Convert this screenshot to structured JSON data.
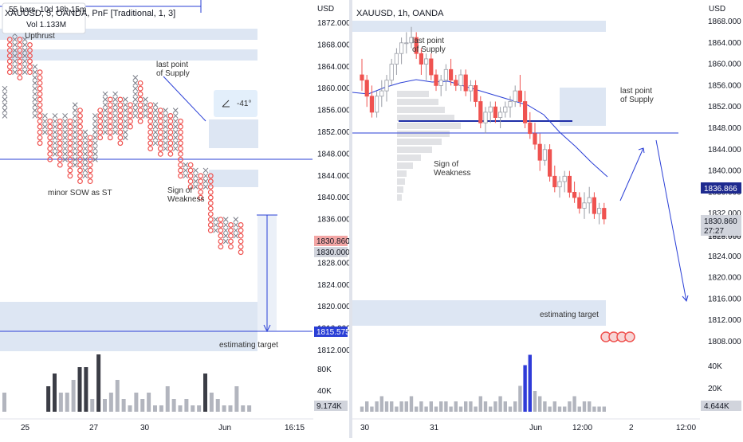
{
  "left": {
    "header_bars": "55 bars, 10d 18h 15m",
    "symbol": "XAUUSD, 5, OANDA, PnF [Traditional, 1, 3]",
    "vol": "Vol 1.133M",
    "currency": "USD",
    "annotations": {
      "upthrust": "Upthrust",
      "last_point_l1": "last point",
      "last_point_l2": "of Supply",
      "minor_sow": "minor SOW as ST",
      "sign_l1": "Sign of",
      "sign_l2": "Weakness",
      "estimating_target": "estimating target",
      "angle": "-41°"
    },
    "price_tags": {
      "a": "1830.860",
      "b": "1830.000",
      "c": "1815.575",
      "vol": "9.174K"
    },
    "x_labels": [
      "25",
      "27",
      "30",
      "Jun",
      "16:15"
    ]
  },
  "right": {
    "symbol": "XAUUSD, 1h, OANDA",
    "currency": "USD",
    "annotations": {
      "last_point_l1": "last point",
      "last_point_l2": "of Supply",
      "last_point2_l1": "last point",
      "last_point2_l2": "of Supply",
      "sign_l1": "Sign of",
      "sign_l2": "Weakness",
      "estimating_target": "estimating target"
    },
    "price_tags": {
      "ma": "1836.866",
      "last": "1830.860",
      "countdown": "27:27",
      "behind": "1828.000",
      "vol": "4.644K"
    },
    "x_labels": [
      "30",
      "31",
      "Jun",
      "12:00",
      "2",
      "12:00"
    ]
  },
  "colors": {
    "up": "#ef5350",
    "down": "#787b86",
    "blue": "#2a3fd6",
    "zone": "#dde6f3",
    "vol_blue": "#2f3bd8"
  },
  "chart_data": [
    {
      "type": "point-and-figure",
      "title": "XAUUSD, 5, OANDA, PnF [Traditional, 1, 3]",
      "yaxis_label": "USD",
      "y_ticks": [
        1872,
        1868,
        1864,
        1860,
        1856,
        1852,
        1848,
        1844,
        1840,
        1836,
        1832,
        1828,
        1824,
        1820,
        1816,
        1812
      ],
      "ylim": [
        1810,
        1874
      ],
      "x_ticks": [
        "25",
        "27",
        "30",
        "Jun",
        "16:15"
      ],
      "columns": [
        {
          "t": "X",
          "lo": 1855,
          "hi": 1860
        },
        {
          "t": "O",
          "lo": 1863,
          "hi": 1869
        },
        {
          "t": "X",
          "lo": 1863,
          "hi": 1870
        },
        {
          "t": "O",
          "lo": 1862,
          "hi": 1869
        },
        {
          "t": "X",
          "lo": 1863,
          "hi": 1869
        },
        {
          "t": "O",
          "lo": 1863,
          "hi": 1868
        },
        {
          "t": "X",
          "lo": 1855,
          "hi": 1864
        },
        {
          "t": "O",
          "lo": 1850,
          "hi": 1863
        },
        {
          "t": "X",
          "lo": 1852,
          "hi": 1855
        },
        {
          "t": "O",
          "lo": 1847,
          "hi": 1854
        },
        {
          "t": "X",
          "lo": 1848,
          "hi": 1855
        },
        {
          "t": "O",
          "lo": 1846,
          "hi": 1854
        },
        {
          "t": "X",
          "lo": 1847,
          "hi": 1855
        },
        {
          "t": "O",
          "lo": 1844,
          "hi": 1854
        },
        {
          "t": "X",
          "lo": 1846,
          "hi": 1857
        },
        {
          "t": "O",
          "lo": 1843,
          "hi": 1856
        },
        {
          "t": "X",
          "lo": 1844,
          "hi": 1852
        },
        {
          "t": "O",
          "lo": 1843,
          "hi": 1851
        },
        {
          "t": "X",
          "lo": 1847,
          "hi": 1855
        },
        {
          "t": "O",
          "lo": 1851,
          "hi": 1856
        },
        {
          "t": "X",
          "lo": 1852,
          "hi": 1859
        },
        {
          "t": "O",
          "lo": 1851,
          "hi": 1858
        },
        {
          "t": "X",
          "lo": 1852,
          "hi": 1859
        },
        {
          "t": "O",
          "lo": 1850,
          "hi": 1858
        },
        {
          "t": "X",
          "lo": 1851,
          "hi": 1858
        },
        {
          "t": "O",
          "lo": 1853,
          "hi": 1857
        },
        {
          "t": "X",
          "lo": 1855,
          "hi": 1862
        },
        {
          "t": "O",
          "lo": 1854,
          "hi": 1861
        },
        {
          "t": "X",
          "lo": 1855,
          "hi": 1858
        },
        {
          "t": "O",
          "lo": 1849,
          "hi": 1857
        },
        {
          "t": "X",
          "lo": 1850,
          "hi": 1857
        },
        {
          "t": "O",
          "lo": 1848,
          "hi": 1856
        },
        {
          "t": "X",
          "lo": 1849,
          "hi": 1856
        },
        {
          "t": "O",
          "lo": 1848,
          "hi": 1855
        },
        {
          "t": "X",
          "lo": 1849,
          "hi": 1856
        },
        {
          "t": "O",
          "lo": 1844,
          "hi": 1854
        },
        {
          "t": "X",
          "lo": 1844,
          "hi": 1846
        },
        {
          "t": "O",
          "lo": 1842,
          "hi": 1846
        },
        {
          "t": "X",
          "lo": 1842,
          "hi": 1845
        },
        {
          "t": "O",
          "lo": 1840,
          "hi": 1844
        },
        {
          "t": "X",
          "lo": 1842,
          "hi": 1845
        },
        {
          "t": "O",
          "lo": 1834,
          "hi": 1844
        },
        {
          "t": "X",
          "lo": 1834,
          "hi": 1836
        },
        {
          "t": "O",
          "lo": 1831,
          "hi": 1836
        },
        {
          "t": "X",
          "lo": 1832,
          "hi": 1836
        },
        {
          "t": "O",
          "lo": 1831,
          "hi": 1835
        },
        {
          "t": "X",
          "lo": 1833,
          "hi": 1836
        },
        {
          "t": "O",
          "lo": 1830,
          "hi": 1835
        }
      ],
      "volume": [
        3,
        0,
        0,
        0,
        0,
        0,
        0,
        4,
        6,
        3,
        3,
        5,
        7,
        7,
        2,
        9,
        2,
        3,
        5,
        2,
        1,
        3,
        2,
        3,
        1,
        1,
        4,
        2,
        1,
        2,
        1,
        1,
        6,
        3,
        2,
        1,
        1,
        4,
        1,
        1
      ],
      "volume_ticks": [
        "80K",
        "40K"
      ],
      "last_price": 1830.86,
      "target": 1815.575
    },
    {
      "type": "candlestick",
      "title": "XAUUSD, 1h, OANDA",
      "yaxis_label": "USD",
      "y_ticks": [
        1868,
        1864,
        1860,
        1856,
        1852,
        1848,
        1844,
        1840,
        1836,
        1832,
        1828,
        1824,
        1820,
        1816,
        1812,
        1808
      ],
      "ylim": [
        1806,
        1870
      ],
      "x_ticks": [
        "30",
        "31",
        "Jun",
        "12:00",
        "2",
        "12:00"
      ],
      "candles": [
        [
          1858,
          1861,
          1855,
          1857
        ],
        [
          1857,
          1858,
          1852,
          1854
        ],
        [
          1854,
          1856,
          1850,
          1851
        ],
        [
          1851,
          1855,
          1850,
          1854
        ],
        [
          1854,
          1857,
          1852,
          1855
        ],
        [
          1855,
          1858,
          1853,
          1857
        ],
        [
          1857,
          1861,
          1856,
          1860
        ],
        [
          1860,
          1863,
          1858,
          1862
        ],
        [
          1862,
          1865,
          1860,
          1864
        ],
        [
          1864,
          1866,
          1862,
          1864
        ],
        [
          1864,
          1867,
          1863,
          1865
        ],
        [
          1865,
          1866,
          1861,
          1862
        ],
        [
          1862,
          1863,
          1858,
          1860
        ],
        [
          1860,
          1862,
          1857,
          1861
        ],
        [
          1861,
          1862,
          1857,
          1858
        ],
        [
          1858,
          1859,
          1855,
          1856
        ],
        [
          1856,
          1858,
          1854,
          1857
        ],
        [
          1857,
          1860,
          1855,
          1859
        ],
        [
          1859,
          1861,
          1856,
          1857
        ],
        [
          1857,
          1858,
          1855,
          1856
        ],
        [
          1856,
          1859,
          1855,
          1858
        ],
        [
          1858,
          1859,
          1854,
          1855
        ],
        [
          1855,
          1857,
          1853,
          1856
        ],
        [
          1856,
          1857,
          1852,
          1853
        ],
        [
          1853,
          1854,
          1848,
          1849
        ],
        [
          1849,
          1852,
          1847,
          1851
        ],
        [
          1851,
          1853,
          1849,
          1852
        ],
        [
          1852,
          1853,
          1849,
          1850
        ],
        [
          1850,
          1852,
          1848,
          1851
        ],
        [
          1851,
          1853,
          1850,
          1852
        ],
        [
          1852,
          1854,
          1850,
          1853
        ],
        [
          1853,
          1856,
          1852,
          1855
        ],
        [
          1855,
          1858,
          1852,
          1853
        ],
        [
          1853,
          1855,
          1848,
          1849
        ],
        [
          1849,
          1851,
          1846,
          1847
        ],
        [
          1847,
          1849,
          1844,
          1845
        ],
        [
          1845,
          1847,
          1840,
          1842
        ],
        [
          1842,
          1845,
          1841,
          1844
        ],
        [
          1844,
          1845,
          1838,
          1839
        ],
        [
          1839,
          1841,
          1836,
          1837
        ],
        [
          1837,
          1839,
          1835,
          1838
        ],
        [
          1838,
          1840,
          1836,
          1839
        ],
        [
          1839,
          1840,
          1835,
          1836
        ],
        [
          1836,
          1838,
          1834,
          1835
        ],
        [
          1835,
          1836,
          1832,
          1833
        ],
        [
          1833,
          1836,
          1831,
          1834
        ],
        [
          1834,
          1837,
          1832,
          1835
        ],
        [
          1835,
          1836,
          1831,
          1832
        ],
        [
          1832,
          1834,
          1830,
          1833
        ],
        [
          1833,
          1834,
          1830,
          1831
        ]
      ],
      "ma_last": 1836.866,
      "volume": [
        1,
        2,
        1,
        2,
        3,
        2,
        2,
        1,
        2,
        2,
        3,
        1,
        2,
        1,
        2,
        1,
        2,
        2,
        1,
        2,
        1,
        2,
        2,
        1,
        3,
        2,
        1,
        2,
        3,
        2,
        1,
        2,
        5,
        9,
        11,
        4,
        3,
        2,
        1,
        2,
        1,
        1,
        2,
        3,
        1,
        2,
        2,
        1,
        1,
        1
      ],
      "volume_ticks": [
        "40K",
        "20K"
      ],
      "last_price": 1830.86
    }
  ]
}
